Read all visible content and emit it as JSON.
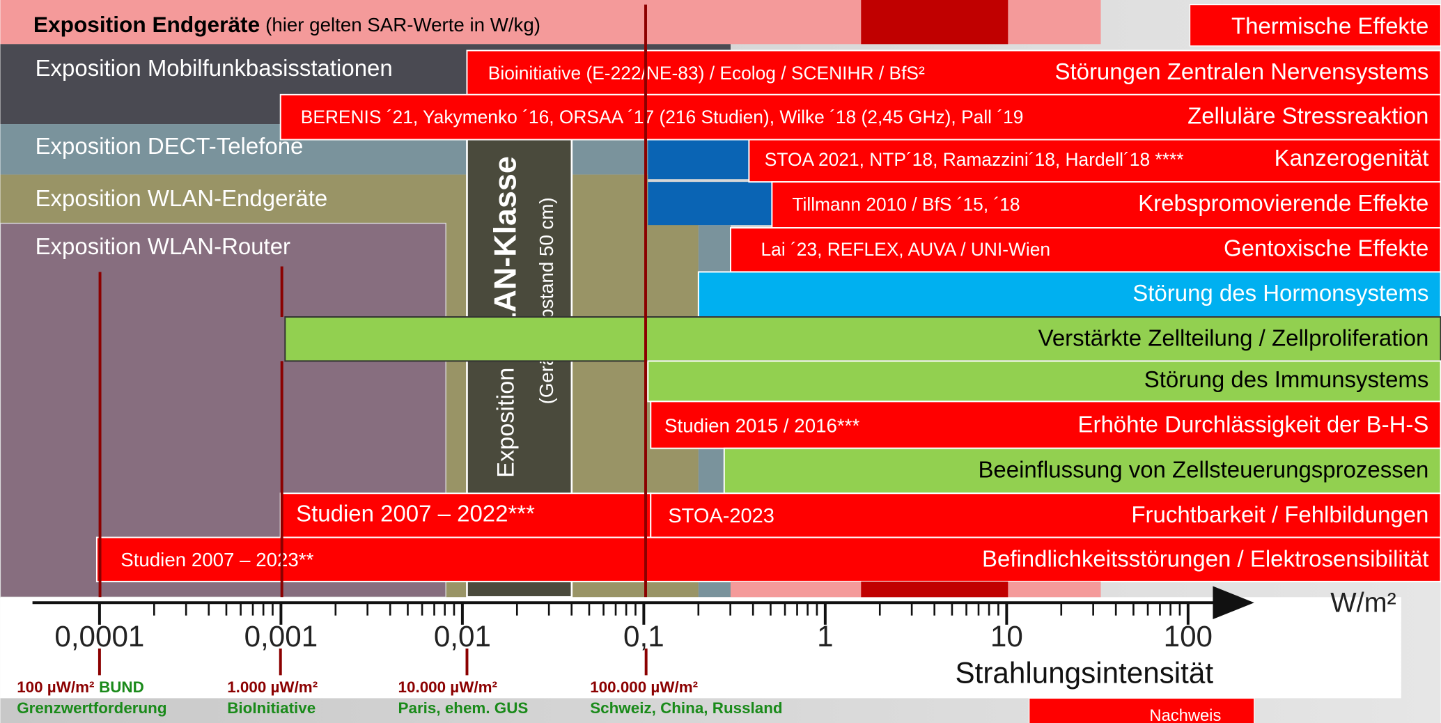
{
  "header": {
    "title": "Exposition Endgeräte",
    "note": "(hier gelten SAR-Werte in W/kg)"
  },
  "exposures": [
    "Exposition Mobilfunkbasisstationen",
    "Exposition DECT-Telefone",
    "Exposition WLAN-Endgeräte",
    "Exposition WLAN-Router"
  ],
  "wlan_class": {
    "prefix": "Exposition ",
    "title": "WLAN-Klasse",
    "note": "(Geräte-Abstand 50 cm)"
  },
  "effects": [
    {
      "label": "Thermische Effekte"
    },
    {
      "studies": "Bioinitiative (E-222/NE-83) / Ecolog / SCENIHR / BfS²",
      "label": "Störungen Zentralen Nervensystems"
    },
    {
      "studies": "BERENIS ´21, Yakymenko ´16, ORSAA ´17 (216 Studien), Wilke ´18 (2,45 GHz), Pall ´19",
      "label": "Zelluläre Stressreaktion"
    },
    {
      "studies": "STOA 2021, NTP´18, Ramazzini´18, Hardell´18 ****",
      "label": "Kanzerogenität"
    },
    {
      "studies": "Tillmann 2010 / BfS ´15, ´18",
      "label": "Krebspromovierende Effekte"
    },
    {
      "studies": "Lai ´23, REFLEX, AUVA / UNI-Wien",
      "label": "Gentoxische Effekte"
    },
    {
      "label": "Störung des Hormonsystems"
    },
    {
      "label": "Verstärkte Zellteilung / Zellproliferation"
    },
    {
      "label": "Störung des Immunsystems"
    },
    {
      "studies": "Studien 2015 / 2016***",
      "label": "Erhöhte Durchlässigkeit der B-H-S"
    },
    {
      "label": "Beeinflussung von Zellsteuerungsprozessen"
    },
    {
      "studies_left": "Studien 2007 – 2022***",
      "studies": "STOA-2023",
      "label": "Fruchtbarkeit / Fehlbildungen"
    },
    {
      "studies": "Studien 2007 – 2023**",
      "label": "Befindlichkeitsstörungen / Elektrosensibilität"
    }
  ],
  "axis": {
    "ticks": [
      "0,0001",
      "0,001",
      "0,01",
      "0,1",
      "1",
      "10",
      "100"
    ],
    "unit": "W/m²",
    "label": "Strahlungsintensität"
  },
  "limits": [
    {
      "value": "100 µW/m²",
      "tag": "BUND",
      "source": "Grenzwertforderung"
    },
    {
      "value": "1.000 µW/m²",
      "source": "BioInitiative"
    },
    {
      "value": "10.000 µW/m²",
      "source": "Paris, ehem. GUS"
    },
    {
      "value": "100.000 µW/m²",
      "source": "Schweiz, China, Russland"
    }
  ],
  "footer": "Nachweis"
}
